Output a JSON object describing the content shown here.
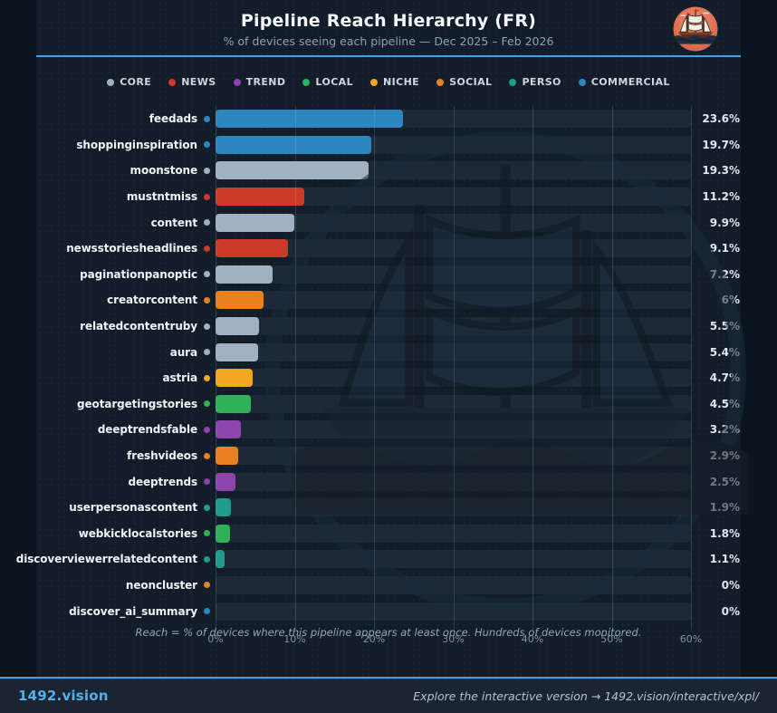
{
  "header": {
    "title": "Pipeline Reach Hierarchy (FR)",
    "subtitle": "% of devices seeing each pipeline — Dec 2025 – Feb 2026",
    "logo": "ship-caravel-badge"
  },
  "legend_order": [
    "CORE",
    "NEWS",
    "TREND",
    "LOCAL",
    "NICHE",
    "SOCIAL",
    "PERSO",
    "COMMERCIAL"
  ],
  "category_colors": {
    "CORE": "#a2b1c2",
    "NEWS": "#cf3a28",
    "TREND": "#8e44ad",
    "LOCAL": "#2eb158",
    "NICHE": "#f3a61f",
    "SOCIAL": "#e8821f",
    "PERSO": "#1f9c8c",
    "COMMERCIAL": "#2e86c1"
  },
  "chart_data": {
    "type": "bar",
    "orientation": "horizontal",
    "title": "Pipeline Reach Hierarchy (FR)",
    "subtitle": "% of devices seeing each pipeline — Dec 2025 – Feb 2026",
    "xlim": [
      0,
      60
    ],
    "x_ticks": [
      "0%",
      "10%",
      "20%",
      "30%",
      "40%",
      "50%",
      "60%"
    ],
    "grid": true,
    "legend_position": "top",
    "rows": [
      {
        "name": "feedads",
        "category": "COMMERCIAL",
        "value": 23.6,
        "label": "23.6%"
      },
      {
        "name": "shoppinginspiration",
        "category": "COMMERCIAL",
        "value": 19.7,
        "label": "19.7%"
      },
      {
        "name": "moonstone",
        "category": "CORE",
        "value": 19.3,
        "label": "19.3%"
      },
      {
        "name": "mustntmiss",
        "category": "NEWS",
        "value": 11.2,
        "label": "11.2%"
      },
      {
        "name": "content",
        "category": "CORE",
        "value": 9.9,
        "label": "9.9%"
      },
      {
        "name": "newsstoriesheadlines",
        "category": "NEWS",
        "value": 9.1,
        "label": "9.1%"
      },
      {
        "name": "paginationpanoptic",
        "category": "CORE",
        "value": 7.2,
        "label": "7.2%"
      },
      {
        "name": "creatorcontent",
        "category": "SOCIAL",
        "value": 6.0,
        "label": "6%"
      },
      {
        "name": "relatedcontentruby",
        "category": "CORE",
        "value": 5.5,
        "label": "5.5%"
      },
      {
        "name": "aura",
        "category": "CORE",
        "value": 5.4,
        "label": "5.4%"
      },
      {
        "name": "astria",
        "category": "NICHE",
        "value": 4.7,
        "label": "4.7%"
      },
      {
        "name": "geotargetingstories",
        "category": "LOCAL",
        "value": 4.5,
        "label": "4.5%"
      },
      {
        "name": "deeptrendsfable",
        "category": "TREND",
        "value": 3.2,
        "label": "3.2%"
      },
      {
        "name": "freshvideos",
        "category": "SOCIAL",
        "value": 2.9,
        "label": "2.9%"
      },
      {
        "name": "deeptrends",
        "category": "TREND",
        "value": 2.5,
        "label": "2.5%"
      },
      {
        "name": "userpersonascontent",
        "category": "PERSO",
        "value": 1.9,
        "label": "1.9%"
      },
      {
        "name": "webkicklocalstories",
        "category": "LOCAL",
        "value": 1.8,
        "label": "1.8%"
      },
      {
        "name": "discoverviewerrelatedcontent",
        "category": "PERSO",
        "value": 1.1,
        "label": "1.1%"
      },
      {
        "name": "neoncluster",
        "category": "SOCIAL",
        "value": 0,
        "label": "0%"
      },
      {
        "name": "discover_ai_summary",
        "category": "COMMERCIAL",
        "value": 0,
        "label": "0%"
      }
    ],
    "footnote": "Reach = % of devices where this pipeline appears at least once. Hundreds of devices monitored."
  },
  "footer": {
    "brand": "1492.vision",
    "note": "Explore the interactive version → 1492.vision/interactive/xpl/"
  },
  "colors": {
    "accent_blue": "#3fa2e3",
    "page_bg": "#0b141e",
    "panel_bg": "#131d29",
    "track_bg": "#1e2936"
  }
}
